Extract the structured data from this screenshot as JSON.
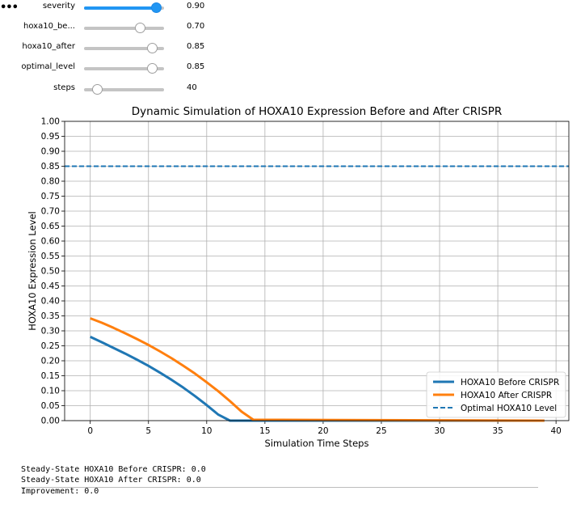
{
  "cell_marker": "•••",
  "sliders": [
    {
      "label": "severity",
      "value": 0.9,
      "display": "0.90",
      "min": 0,
      "max": 1,
      "active": true
    },
    {
      "label": "hoxa10_be...",
      "value": 0.7,
      "display": "0.70",
      "min": 0,
      "max": 1,
      "active": false
    },
    {
      "label": "hoxa10_after",
      "value": 0.85,
      "display": "0.85",
      "min": 0,
      "max": 1,
      "active": false
    },
    {
      "label": "optimal_level",
      "value": 0.85,
      "display": "0.85",
      "min": 0,
      "max": 1,
      "active": false
    },
    {
      "label": "steps",
      "value": 40,
      "display": "40",
      "min": 10,
      "max": 200,
      "active": false
    }
  ],
  "chart_data": {
    "type": "line",
    "title": "Dynamic Simulation of HOXA10 Expression Before and After CRISPR",
    "xlabel": "Simulation Time Steps",
    "ylabel": "HOXA10 Expression Level",
    "xlim": [
      -2.2,
      41.1
    ],
    "ylim": [
      0,
      1.0
    ],
    "xticks": [
      0,
      5,
      10,
      15,
      20,
      25,
      30,
      35,
      40
    ],
    "yticks": [
      0.0,
      0.05,
      0.1,
      0.15,
      0.2,
      0.25,
      0.3,
      0.35,
      0.4,
      0.45,
      0.5,
      0.55,
      0.6,
      0.65,
      0.7,
      0.75,
      0.8,
      0.85,
      0.9,
      0.95,
      1.0
    ],
    "grid": true,
    "legend_position": "lower-right",
    "series": [
      {
        "name": "HOXA10 Before CRISPR",
        "color": "#1f77b4",
        "style": "solid",
        "x": [
          0,
          1,
          2,
          3,
          4,
          5,
          6,
          7,
          8,
          9,
          10,
          11,
          12,
          13,
          14,
          39
        ],
        "y": [
          0.28,
          0.262,
          0.243,
          0.224,
          0.204,
          0.183,
          0.16,
          0.136,
          0.11,
          0.082,
          0.052,
          0.02,
          0.0,
          0.0,
          0.0,
          0.0
        ]
      },
      {
        "name": "HOXA10 After CRISPR",
        "color": "#ff7f0e",
        "style": "solid",
        "x": [
          0,
          1,
          2,
          3,
          4,
          5,
          6,
          7,
          8,
          9,
          10,
          11,
          12,
          13,
          14,
          39
        ],
        "y": [
          0.342,
          0.327,
          0.31,
          0.292,
          0.273,
          0.253,
          0.231,
          0.208,
          0.183,
          0.157,
          0.128,
          0.098,
          0.065,
          0.03,
          0.003,
          0.0
        ]
      },
      {
        "name": "Optimal HOXA10 Level",
        "color": "#1f77b4",
        "style": "dashed",
        "hline": 0.85
      }
    ]
  },
  "output_lines": [
    "Steady-State HOXA10 Before CRISPR: 0.0",
    "Steady-State HOXA10 After CRISPR: 0.0",
    "Improvement: 0.0"
  ]
}
